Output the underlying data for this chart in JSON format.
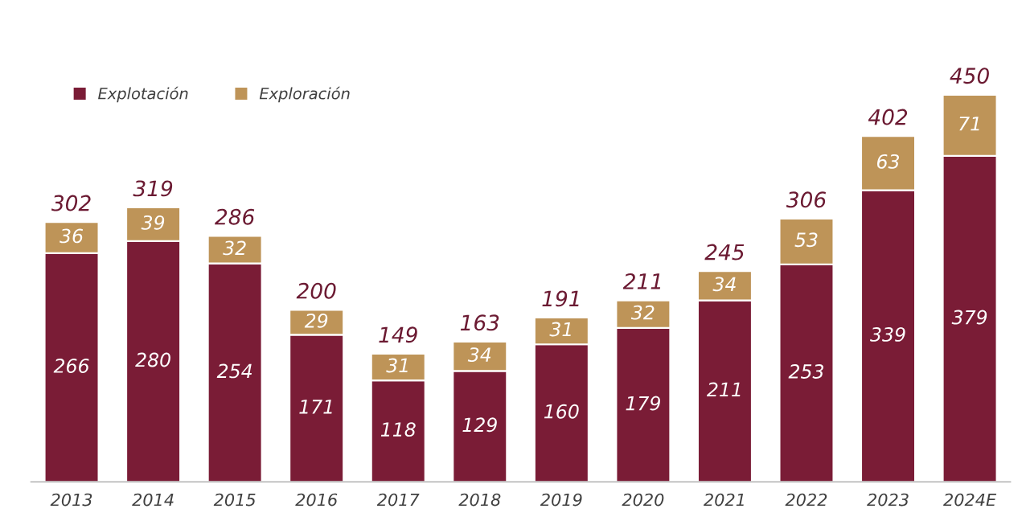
{
  "chart_data": {
    "type": "bar",
    "stacked": true,
    "data_labels": true,
    "legend": "top left",
    "grid": false,
    "categories": [
      "2013",
      "2014",
      "2015",
      "2016",
      "2017",
      "2018",
      "2019",
      "2020",
      "2021",
      "2022",
      "2023",
      "2024E"
    ],
    "series": [
      {
        "name": "Explotación",
        "color": "#7a1c36",
        "values": [
          266,
          280,
          254,
          171,
          118,
          129,
          160,
          179,
          211,
          253,
          339,
          379
        ]
      },
      {
        "name": "Exploración",
        "color": "#be9458",
        "values": [
          36,
          39,
          32,
          29,
          31,
          34,
          31,
          32,
          34,
          53,
          63,
          71
        ]
      }
    ],
    "totals": [
      "302",
      "319",
      "286",
      "200",
      "149",
      "163",
      "191",
      "211",
      "245",
      "306",
      "402",
      "450"
    ]
  }
}
